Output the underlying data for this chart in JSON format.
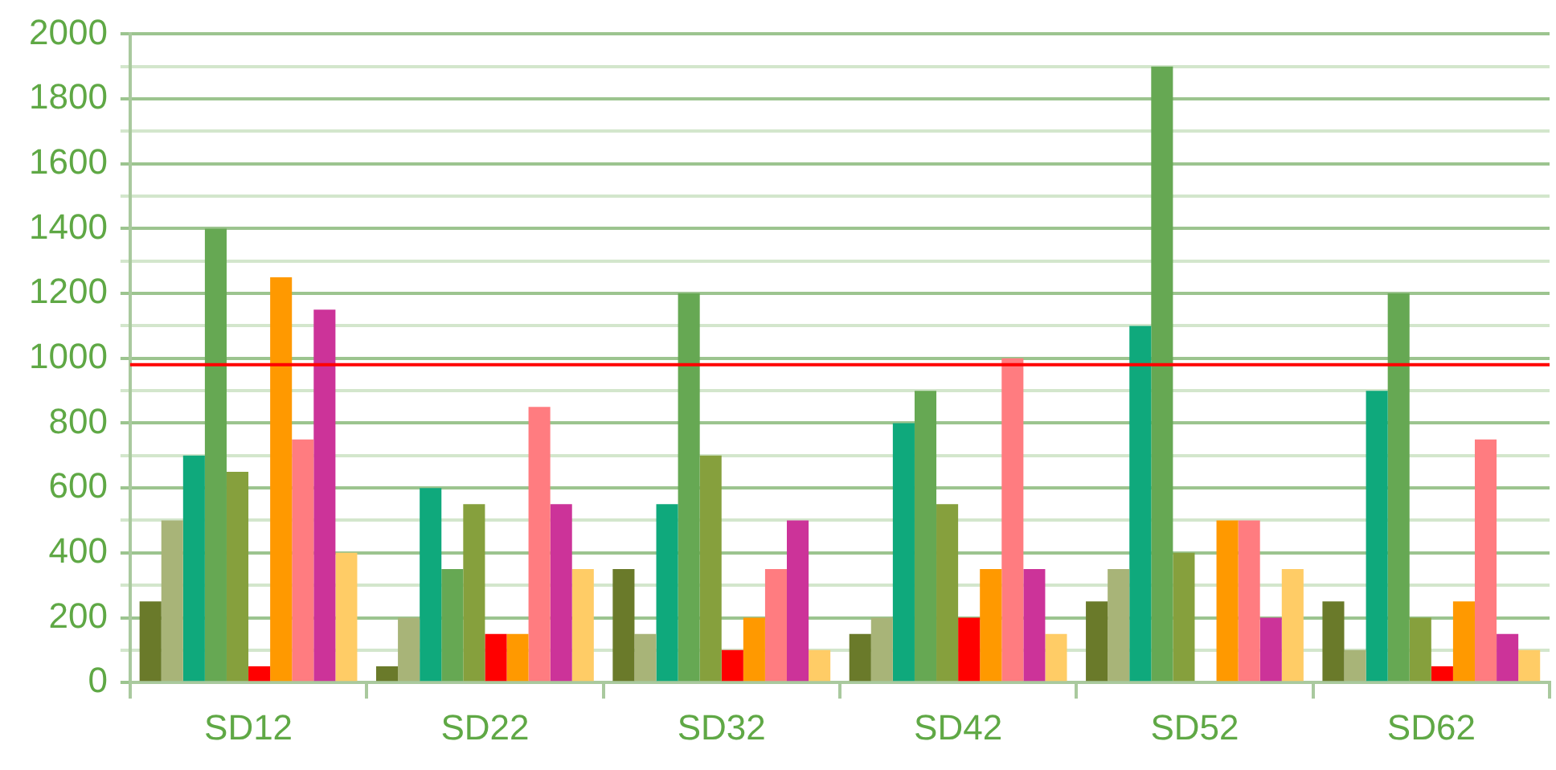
{
  "chart_data": {
    "type": "bar",
    "categories": [
      "SD12",
      "SD22",
      "SD32",
      "SD42",
      "SD52",
      "SD62"
    ],
    "series": [
      {
        "color": "#6a7a2a",
        "values": [
          250,
          50,
          350,
          150,
          250,
          250
        ]
      },
      {
        "color": "#a8b478",
        "values": [
          500,
          200,
          150,
          200,
          350,
          100
        ]
      },
      {
        "color": "#0fa97c",
        "values": [
          700,
          600,
          550,
          800,
          1100,
          900
        ]
      },
      {
        "color": "#66a853",
        "values": [
          1400,
          350,
          1200,
          900,
          1900,
          1200
        ]
      },
      {
        "color": "#86a03d",
        "values": [
          650,
          550,
          700,
          550,
          400,
          200
        ]
      },
      {
        "color": "#ff0000",
        "values": [
          50,
          150,
          100,
          200,
          null,
          50
        ]
      },
      {
        "color": "#ff9900",
        "values": [
          1250,
          150,
          200,
          350,
          500,
          250
        ]
      },
      {
        "color": "#ff7c80",
        "values": [
          750,
          850,
          350,
          1000,
          500,
          750
        ]
      },
      {
        "color": "#cc3399",
        "values": [
          1150,
          550,
          500,
          350,
          200,
          150
        ]
      },
      {
        "color": "#ffcc66",
        "values": [
          400,
          350,
          100,
          150,
          350,
          100
        ]
      }
    ],
    "ylim": [
      0,
      2000
    ],
    "yticks": [
      0,
      {
        "value": 100,
        "label": null
      },
      200,
      {
        "value": 300,
        "label": null
      },
      400,
      {
        "value": 500,
        "label": null
      },
      600,
      {
        "value": 700,
        "label": null
      },
      800,
      {
        "value": 900,
        "label": null
      },
      1000,
      {
        "value": 1100,
        "label": null
      },
      1200,
      {
        "value": 1300,
        "label": null
      },
      1400,
      {
        "value": 1500,
        "label": null
      },
      1600,
      {
        "value": 1700,
        "label": null
      },
      1800,
      {
        "value": 1900,
        "label": null
      },
      2000
    ],
    "grid": "y",
    "legend": false,
    "ref_lines": [
      {
        "axis": "y",
        "value": 980,
        "color": "#ff0000"
      }
    ]
  }
}
